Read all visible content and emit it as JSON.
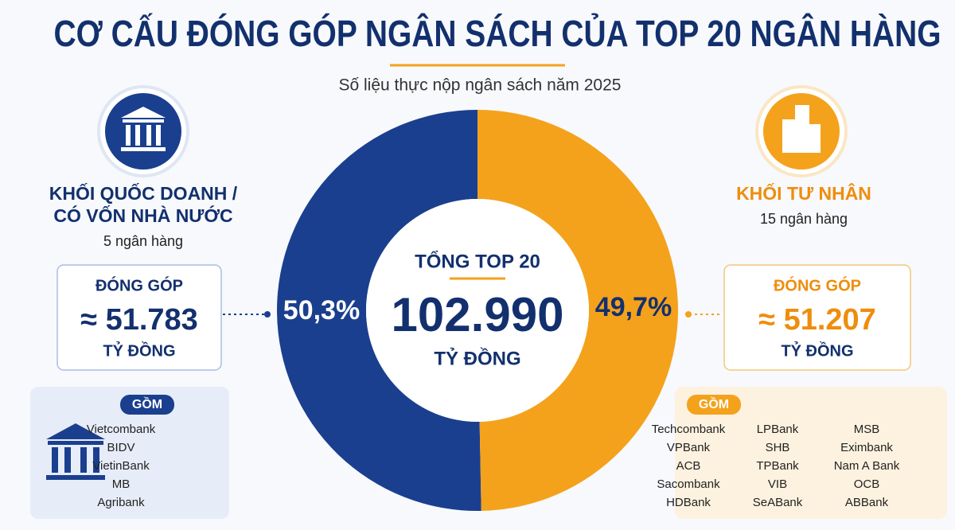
{
  "title": "CƠ CẤU ĐÓNG GÓP NGÂN SÁCH CỦA TOP 20 NGÂN HÀNG",
  "subtitle": "Số liệu thực nộp ngân sách năm 2025",
  "chart_data": {
    "type": "donut",
    "values": [
      50.3,
      49.7
    ],
    "value_labels": [
      "50,3%",
      "49,7%"
    ],
    "colors": [
      "#1b3f8f",
      "#f4a21c"
    ],
    "center": {
      "heading": "TỔNG TOP 20",
      "amount": "102.990",
      "unit": "TỶ ĐỒNG"
    }
  },
  "left": {
    "name": [
      "KHỐI QUỐC DOANH /",
      "CÓ VỐN NHÀ NƯỚC"
    ],
    "count": "5 ngân hàng",
    "box": {
      "label": "ĐÓNG GÓP",
      "amount": "≈ 51.783",
      "unit": "TỶ ĐỒNG"
    },
    "list_title": "GỒM",
    "banks": [
      "Vietcombank",
      "BIDV",
      "VietinBank",
      "MB",
      "Agribank"
    ]
  },
  "right": {
    "name": [
      "KHỐI TƯ NHÂN"
    ],
    "count": "15 ngân hàng",
    "box": {
      "label": "ĐÓNG GÓP",
      "amount": "≈ 51.207",
      "unit": "TỶ ĐỒNG"
    },
    "list_title": "GỒM",
    "banks": [
      "Techcombank",
      "VPBank",
      "ACB",
      "Sacombank",
      "HDBank",
      "LPBank",
      "SHB",
      "TPBank",
      "VIB",
      "SeABank",
      "MSB",
      "Eximbank",
      "Nam A Bank",
      "OCB",
      "ABBank"
    ]
  }
}
